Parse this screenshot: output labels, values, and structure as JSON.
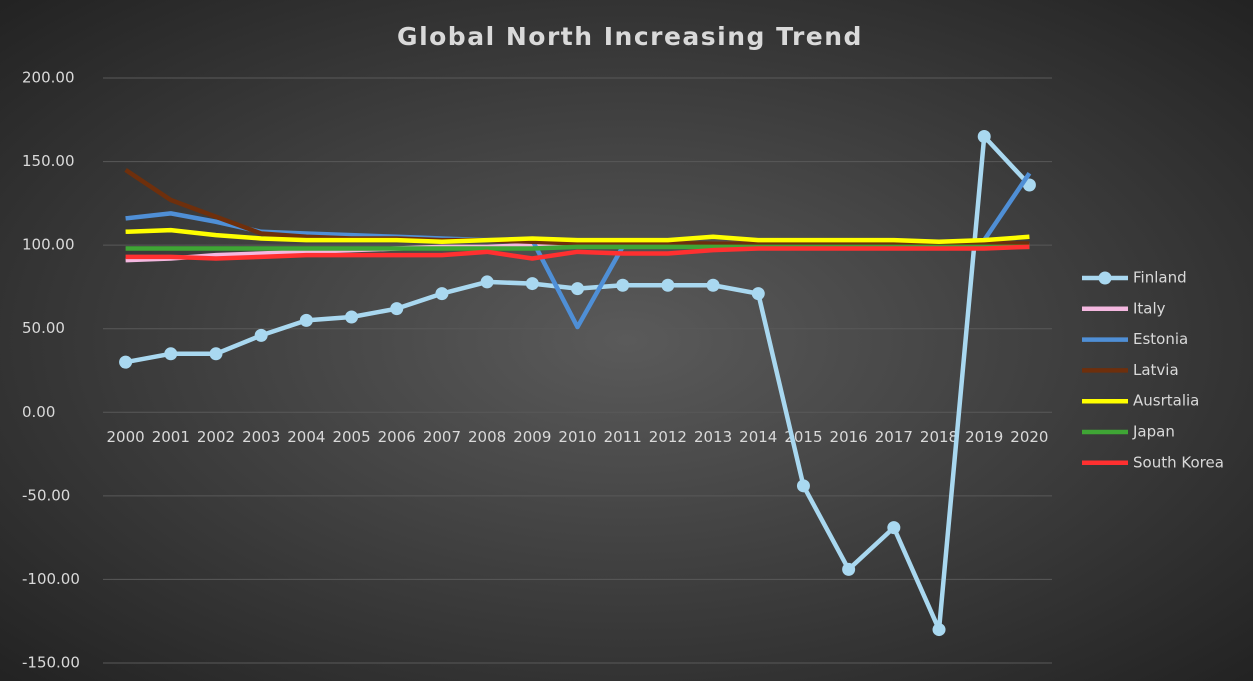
{
  "chart_data": {
    "type": "line",
    "title": "Global North  Increasing Trend",
    "categories": [
      "2000",
      "2001",
      "2002",
      "2003",
      "2004",
      "2005",
      "2006",
      "2007",
      "2008",
      "2009",
      "2010",
      "2011",
      "2012",
      "2013",
      "2014",
      "2015",
      "2016",
      "2017",
      "2018",
      "2019",
      "2020"
    ],
    "series": [
      {
        "name": "Finland",
        "color": "#a9d8f0",
        "marker": "circle",
        "values": [
          30,
          35,
          35,
          46,
          55,
          57,
          62,
          71,
          78,
          77,
          74,
          76,
          76,
          76,
          71,
          -44,
          -94,
          -69,
          -130,
          165,
          136
        ]
      },
      {
        "name": "Italy",
        "color": "#f4b8e0",
        "values": [
          91,
          92,
          94,
          95,
          96,
          97,
          98,
          99,
          99,
          100,
          100,
          100,
          100,
          100,
          100,
          100,
          100,
          100,
          100,
          100,
          100
        ]
      },
      {
        "name": "Estonia",
        "color": "#4f8fd6",
        "values": [
          116,
          119,
          114,
          108,
          107,
          106,
          105,
          104,
          103,
          103,
          51,
          99,
          100,
          101,
          101,
          101,
          101,
          101,
          101,
          103,
          143
        ]
      },
      {
        "name": "Latvia",
        "color": "#6e2f0c",
        "values": [
          145,
          127,
          117,
          107,
          105,
          104,
          104,
          103,
          103,
          102,
          101,
          101,
          101,
          101,
          101,
          101,
          101,
          101,
          101,
          101,
          101
        ]
      },
      {
        "name": "Ausrtalia",
        "color": "#ffff00",
        "values": [
          108,
          109,
          106,
          104,
          103,
          103,
          103,
          102,
          103,
          104,
          103,
          103,
          103,
          105,
          103,
          103,
          103,
          103,
          102,
          103,
          105
        ]
      },
      {
        "name": "Japan",
        "color": "#3fa535",
        "values": [
          98,
          98,
          98,
          98,
          98,
          98,
          98,
          98,
          98,
          98,
          99,
          99,
          99,
          99,
          99,
          99,
          99,
          99,
          99,
          99,
          99
        ]
      },
      {
        "name": "South Korea",
        "color": "#ff3030",
        "values": [
          93,
          93,
          92,
          93,
          94,
          94,
          94,
          94,
          96,
          92,
          96,
          95,
          95,
          97,
          98,
          98,
          98,
          98,
          98,
          98,
          99
        ]
      }
    ],
    "ylim": [
      -150,
      200
    ],
    "yticks": [
      {
        "value": -150,
        "label": "-150.00"
      },
      {
        "value": -100,
        "label": "-100.00"
      },
      {
        "value": -50,
        "label": "-50.00"
      },
      {
        "value": 0,
        "label": "0.00"
      },
      {
        "value": 50,
        "label": "50.00"
      },
      {
        "value": 100,
        "label": "100.00"
      },
      {
        "value": 150,
        "label": "150.00"
      },
      {
        "value": 200,
        "label": "200.00"
      }
    ],
    "grid": true,
    "legend": "right"
  }
}
